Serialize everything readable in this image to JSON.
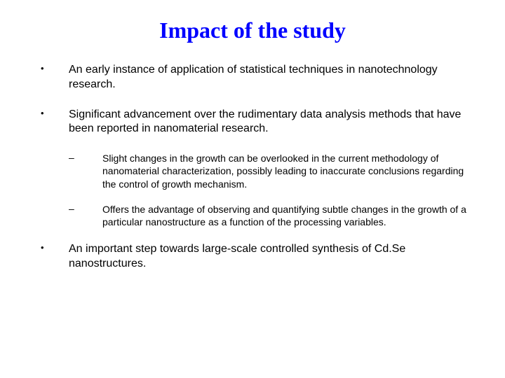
{
  "title": {
    "text": "Impact of the study",
    "color": "#0000ff",
    "fontsize": 32
  },
  "bullets": [
    {
      "text": "An early instance of application of statistical techniques in nanotechnology research.",
      "fontsize": 16,
      "color": "#000000"
    },
    {
      "text": "Significant advancement over the rudimentary data analysis methods that have been reported in nanomaterial research.",
      "fontsize": 16,
      "color": "#000000"
    },
    {
      "text": "An important step towards large-scale controlled synthesis of Cd.Se nanostructures.",
      "fontsize": 16,
      "color": "#000000"
    }
  ],
  "subbullets": [
    {
      "text": "Slight changes in the growth can be overlooked in the current methodology of nanomaterial characterization, possibly leading to inaccurate conclusions regarding the control of growth mechanism.",
      "fontsize": 14,
      "color": "#000000"
    },
    {
      "text": "Offers the advantage of observing and quantifying subtle changes in the growth of a particular nanostructure as a function of the processing variables.",
      "fontsize": 14,
      "color": "#000000"
    }
  ],
  "markers": {
    "bullet": "•",
    "dash": "–",
    "bullet_fontsize": 13,
    "dash_fontsize": 14
  },
  "background_color": "#ffffff"
}
